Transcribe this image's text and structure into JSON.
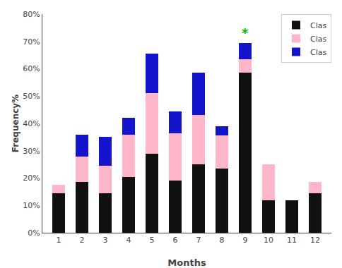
{
  "chart_data": {
    "type": "bar",
    "stacked": true,
    "xlabel": "Months",
    "ylabel": "Frequency%",
    "x": [
      1,
      2,
      3,
      4,
      5,
      6,
      7,
      8,
      9,
      10,
      11,
      12
    ],
    "series": [
      {
        "name": "Clas",
        "color": "#111111",
        "values": [
          14.5,
          18.5,
          14.5,
          20.5,
          29.0,
          19.0,
          25.0,
          23.5,
          58.5,
          12.0,
          12.0,
          14.5
        ]
      },
      {
        "name": "Clas",
        "color": "#ffb6c8",
        "values": [
          3.0,
          9.5,
          10.0,
          15.5,
          22.0,
          17.5,
          18.0,
          12.0,
          5.0,
          13.0,
          0.0,
          4.0
        ]
      },
      {
        "name": "Clas",
        "color": "#1414cc",
        "values": [
          0.0,
          8.0,
          10.5,
          6.0,
          14.5,
          8.0,
          15.5,
          3.5,
          6.0,
          0.0,
          0.0,
          0.0
        ]
      }
    ],
    "xlim": [
      0.3,
      12.7
    ],
    "xticks": [
      1,
      2,
      3,
      4,
      5,
      6,
      7,
      8,
      9,
      10,
      11,
      12
    ],
    "ylim": [
      0,
      80
    ],
    "yticks": [
      {
        "value": 0,
        "label": "0%"
      },
      {
        "value": 10,
        "label": "10%"
      },
      {
        "value": 20,
        "label": "20%"
      },
      {
        "value": 30,
        "label": "30%"
      },
      {
        "value": 40,
        "label": "40%"
      },
      {
        "value": 50,
        "label": "50%"
      },
      {
        "value": 60,
        "label": "60%"
      },
      {
        "value": 70,
        "label": "70%"
      },
      {
        "value": 80,
        "label": "80%"
      }
    ],
    "grid": false,
    "legend": "upper right",
    "annotations": [
      {
        "text": "*",
        "x": 9,
        "y": 69.5,
        "color": "#00bb00"
      }
    ]
  }
}
